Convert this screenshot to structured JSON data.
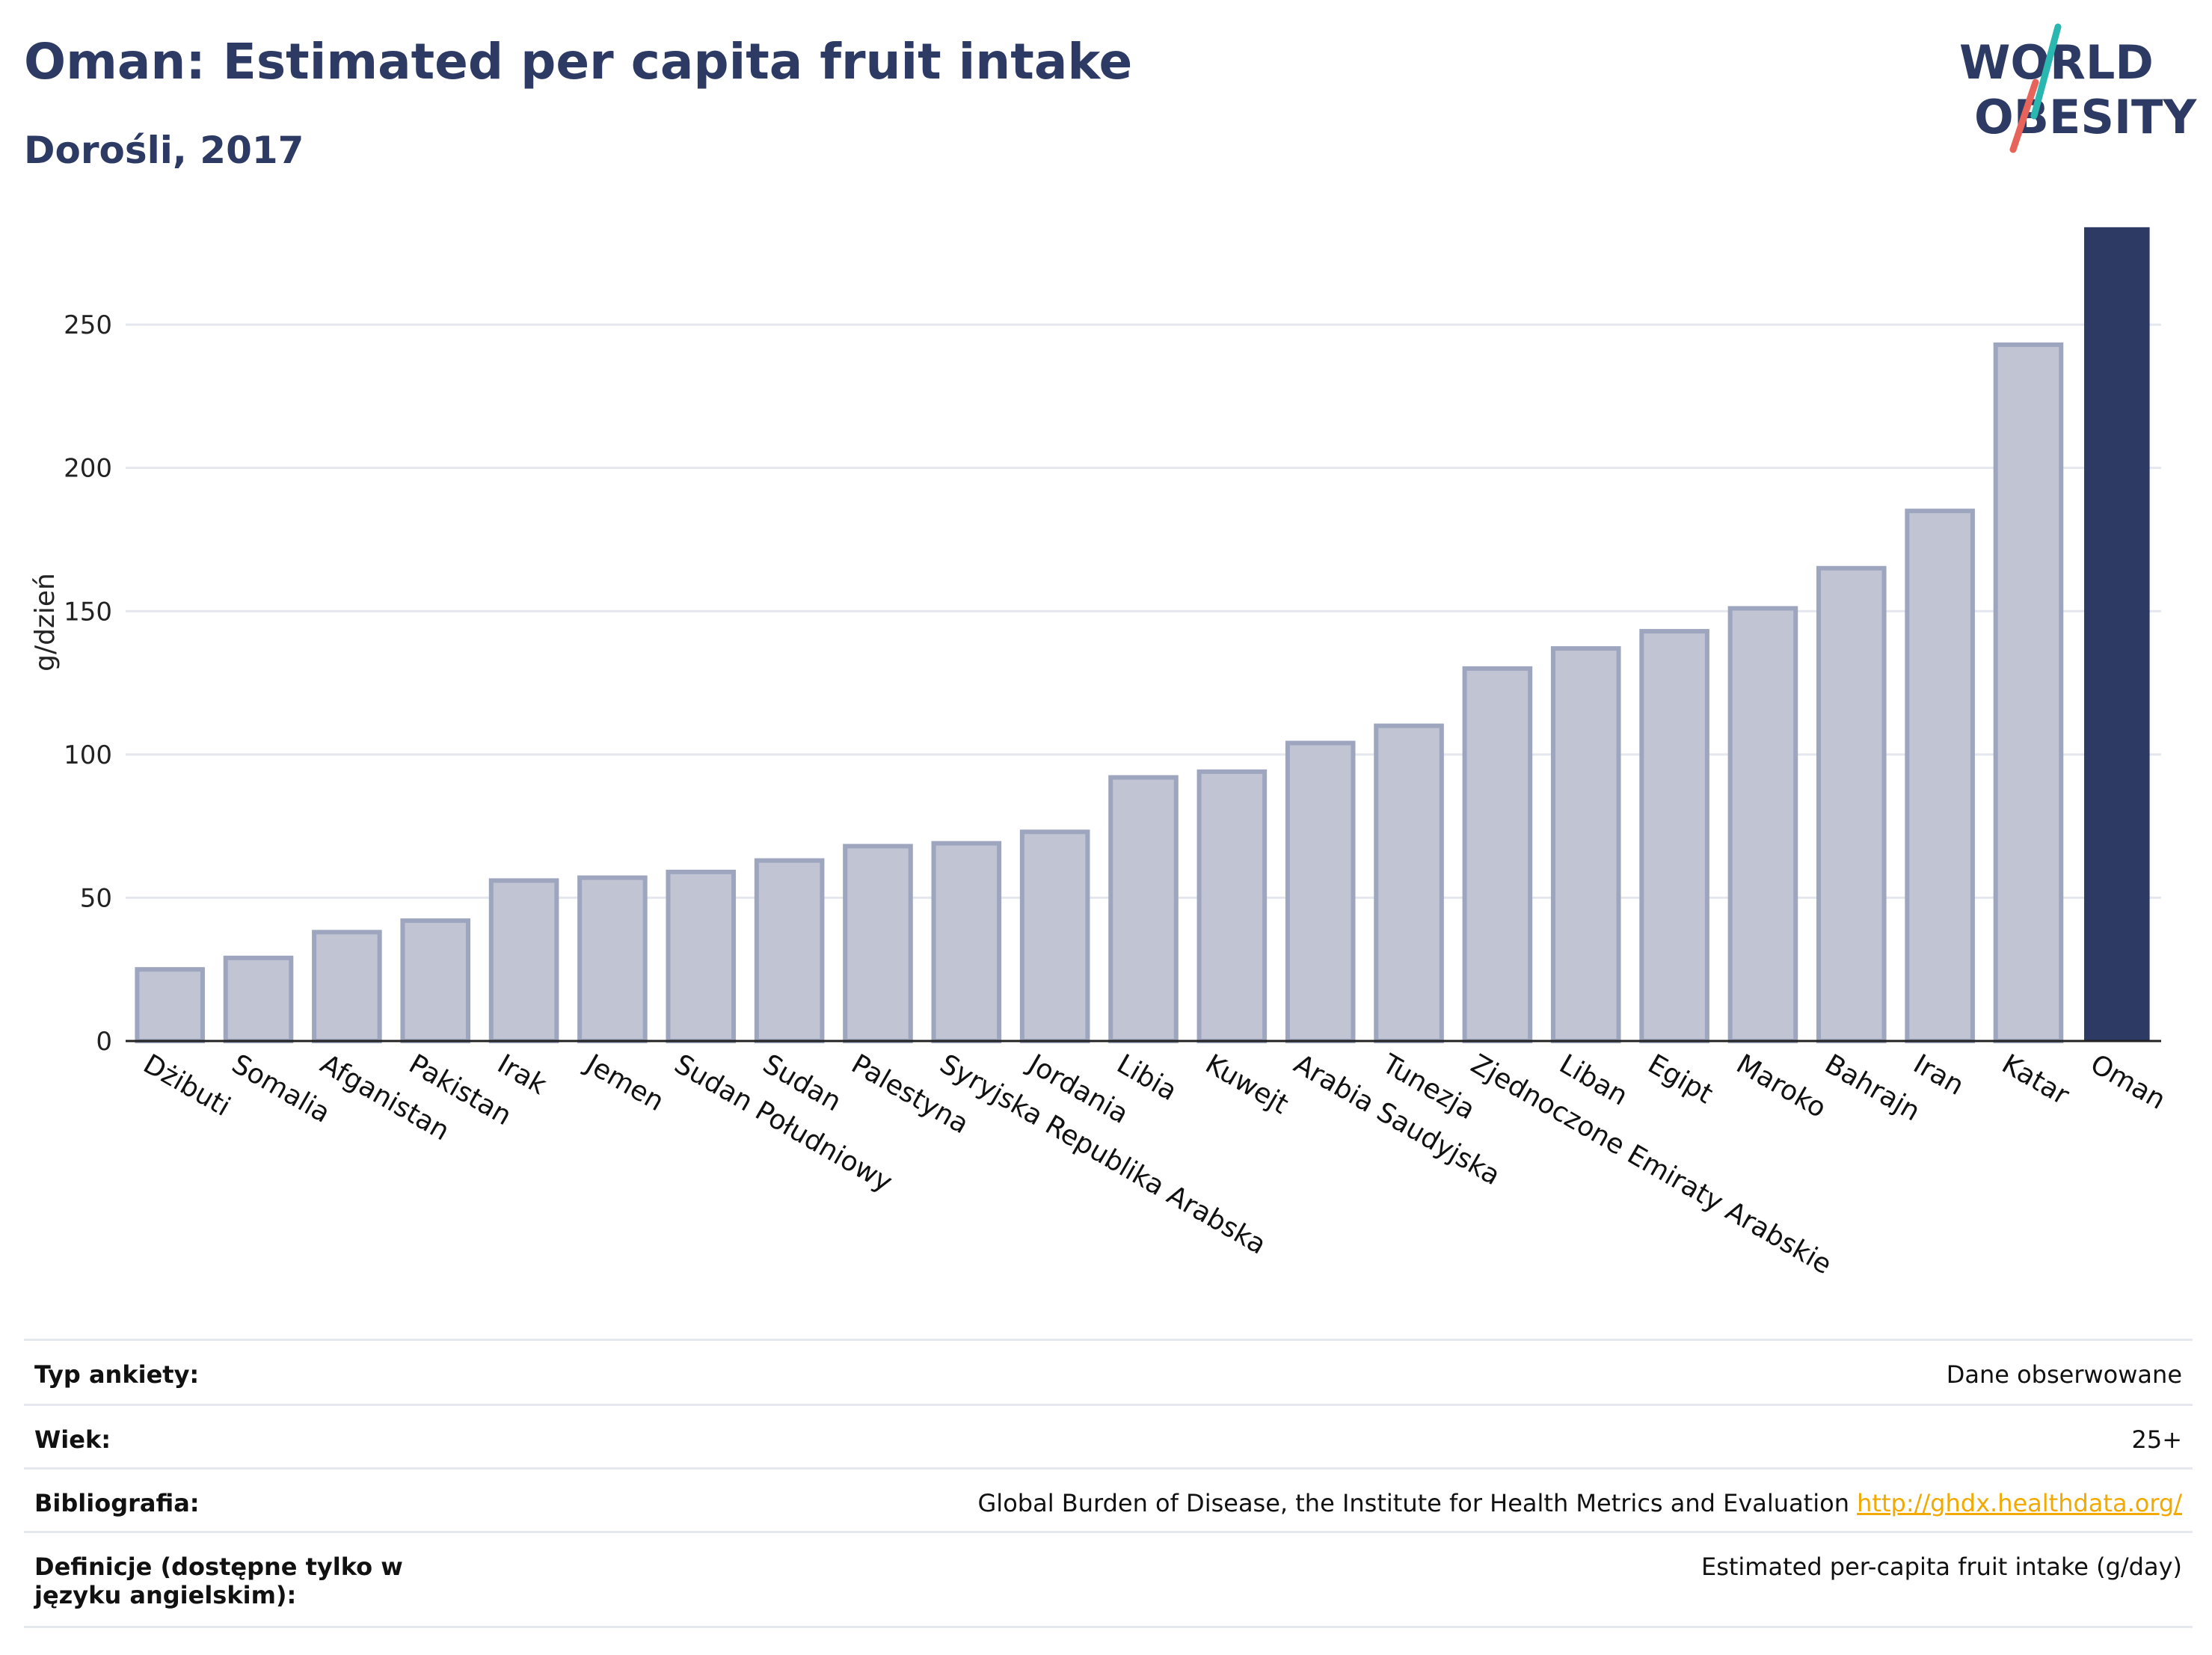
{
  "header": {
    "title": "Oman: Estimated per capita fruit intake",
    "subtitle": "Dorośli, 2017"
  },
  "logo": {
    "line1": "WORLD",
    "line2": "OBESITY"
  },
  "chart_data": {
    "type": "bar",
    "ylabel": "g/dzień",
    "ylim": [
      0,
      285
    ],
    "yticks": [
      0,
      50,
      100,
      150,
      200,
      250
    ],
    "categories": [
      "Dżibuti",
      "Somalia",
      "Afganistan",
      "Pakistan",
      "Irak",
      "Jemen",
      "Sudan Południowy",
      "Sudan",
      "Palestyna",
      "Syryjska Republika Arabska",
      "Jordania",
      "Libia",
      "Kuwejt",
      "Arabia Saudyjska",
      "Tunezja",
      "Zjednoczone Emiraty Arabskie",
      "Liban",
      "Egipt",
      "Maroko",
      "Bahrajn",
      "Iran",
      "Katar",
      "Oman"
    ],
    "values": [
      25,
      29,
      38,
      42,
      56,
      57,
      59,
      63,
      68,
      69,
      73,
      92,
      94,
      104,
      110,
      130,
      137,
      143,
      151,
      165,
      185,
      243,
      284
    ],
    "highlight": "Oman",
    "colors": {
      "bar": "#c0c4d3",
      "bar_border": "#9ea5bf",
      "highlight": "#2c3a64",
      "grid": "#e5e7ee",
      "axis": "#222222"
    }
  },
  "info": [
    {
      "label": "Typ ankiety:",
      "value": "Dane obserwowane"
    },
    {
      "label": "Wiek:",
      "value": "25+"
    },
    {
      "label": "Bibliografia:",
      "value": "Global Burden of Disease, the Institute for Health Metrics and Evaluation",
      "link": "http://ghdx.healthdata.org/"
    },
    {
      "label": "Definicje (dostępne tylko w języku angielskim):",
      "value": "Estimated per-capita fruit intake (g/day)"
    }
  ]
}
